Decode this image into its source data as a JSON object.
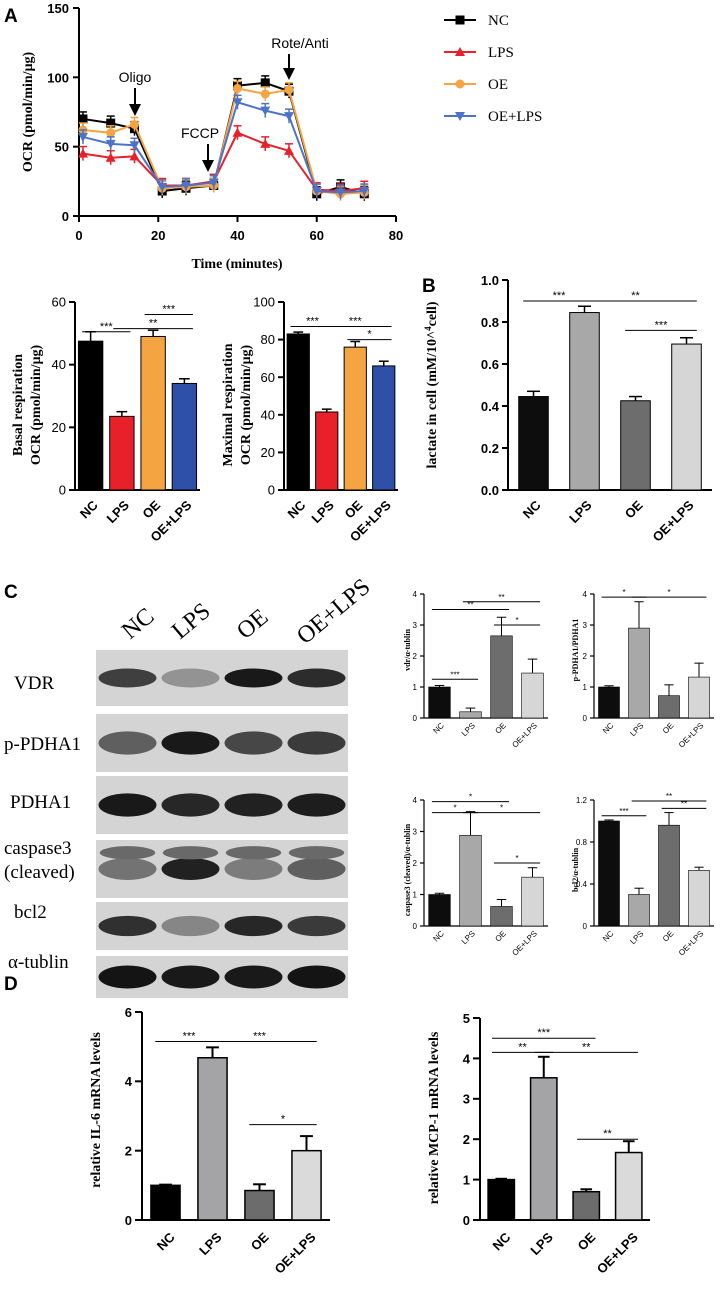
{
  "panels": {
    "A": "A",
    "B": "B",
    "C": "C",
    "D": "D"
  },
  "colors": {
    "NC": "#000000",
    "LPS": "#e8202a",
    "OE": "#f5a442",
    "OE+LPS": "#4d73c9"
  },
  "ocr": {
    "ylabel": "OCR (pmol/min/μg)",
    "xlabel": "Time (minutes)",
    "xticks": [
      "0",
      "20",
      "40",
      "60",
      "80"
    ],
    "yticks": [
      "0",
      "50",
      "100",
      "150"
    ],
    "annotations": {
      "oligo": "Oligo",
      "fccp": "FCCP",
      "rote": "Rote/Anti"
    },
    "legend": [
      "NC",
      "LPS",
      "OE",
      "OE+LPS"
    ]
  },
  "basal": {
    "ylabel1": "Basal respiration",
    "ylabel2": "OCR (pmol/min/μg)",
    "yticks": [
      "0",
      "20",
      "40",
      "60"
    ],
    "categories": [
      "NC",
      "LPS",
      "OE",
      "OE+LPS"
    ]
  },
  "maximal": {
    "ylabel1": "Maximal respiration",
    "ylabel2": "OCR (pmol/min/μg)",
    "yticks": [
      "0",
      "20",
      "40",
      "60",
      "80",
      "100"
    ],
    "categories": [
      "NC",
      "LPS",
      "OE",
      "OE+LPS"
    ]
  },
  "lactate": {
    "ylabel": "lactate in cell (mM/10^4cell)",
    "yticks": [
      "0.0",
      "0.2",
      "0.4",
      "0.6",
      "0.8",
      "1.0"
    ],
    "categories": [
      "NC",
      "LPS",
      "OE",
      "OE+LPS"
    ]
  },
  "blot": {
    "lanes": [
      "NC",
      "LPS",
      "OE",
      "OE+LPS"
    ],
    "rows": [
      "VDR",
      "p-PDHA1",
      "PDHA1",
      "caspase3",
      "(cleaved)",
      "bcl2",
      "α-tublin"
    ]
  },
  "smallcharts": {
    "vdr": {
      "ylabel": "vdr/α-tublin",
      "yticks": [
        "0",
        "1",
        "2",
        "3",
        "4"
      ]
    },
    "ppdh": {
      "ylabel": "p-PDHA1/PDHA1",
      "yticks": [
        "0",
        "1",
        "2",
        "3",
        "4"
      ]
    },
    "casp": {
      "ylabel": "caspase3 (cleaved)/α-tublin",
      "yticks": [
        "0",
        "1",
        "2",
        "3",
        "4"
      ]
    },
    "bcl2": {
      "ylabel": "bcl2/α-tublin",
      "yticks": [
        "0",
        "0.4",
        "0.8",
        "1.2"
      ]
    },
    "categories": [
      "NC",
      "LPS",
      "OE",
      "OE+LPS"
    ]
  },
  "il6": {
    "ylabel": "relative IL-6 mRNA levels",
    "yticks": [
      "0",
      "2",
      "4",
      "6"
    ],
    "categories": [
      "NC",
      "LPS",
      "OE",
      "OE+LPS"
    ]
  },
  "mcp1": {
    "ylabel": "relative MCP-1 mRNA levels",
    "yticks": [
      "0",
      "1",
      "2",
      "3",
      "4",
      "5"
    ],
    "categories": [
      "NC",
      "LPS",
      "OE",
      "OE+LPS"
    ]
  },
  "stars": {
    "s1": "*",
    "s2": "**",
    "s3": "***"
  },
  "chart_data": [
    {
      "type": "line",
      "id": "ocr-time-course",
      "title": "",
      "xlabel": "Time (minutes)",
      "ylabel": "OCR (pmol/min/μg)",
      "xlim": [
        0,
        80
      ],
      "ylim": [
        0,
        150
      ],
      "x": [
        1,
        8,
        14,
        21,
        27,
        34,
        40,
        47,
        53,
        60,
        66,
        72
      ],
      "series": [
        {
          "name": "NC",
          "values": [
            70,
            67,
            63,
            18,
            20,
            22,
            94,
            96,
            90,
            16,
            21,
            16
          ]
        },
        {
          "name": "LPS",
          "values": [
            45,
            42,
            43,
            22,
            22,
            25,
            60,
            52,
            47,
            19,
            18,
            20
          ]
        },
        {
          "name": "OE",
          "values": [
            62,
            60,
            66,
            20,
            21,
            22,
            92,
            88,
            91,
            18,
            16,
            17
          ]
        },
        {
          "name": "OE+LPS",
          "values": [
            57,
            52,
            51,
            21,
            22,
            24,
            82,
            76,
            72,
            18,
            17,
            18
          ]
        }
      ],
      "legend": "right"
    },
    {
      "type": "bar",
      "id": "basal",
      "categories": [
        "NC",
        "LPS",
        "OE",
        "OE+LPS"
      ],
      "values": [
        47.5,
        23.5,
        49,
        34
      ],
      "errors": [
        3,
        1.5,
        2,
        1.5
      ],
      "ylim": [
        0,
        60
      ]
    },
    {
      "type": "bar",
      "id": "maximal",
      "categories": [
        "NC",
        "LPS",
        "OE",
        "OE+LPS"
      ],
      "values": [
        83,
        41.5,
        76,
        66
      ],
      "errors": [
        1,
        1.5,
        3,
        2.5
      ],
      "ylim": [
        0,
        100
      ]
    },
    {
      "type": "bar",
      "id": "lactate",
      "categories": [
        "NC",
        "LPS",
        "OE",
        "OE+LPS"
      ],
      "values": [
        0.445,
        0.845,
        0.425,
        0.695
      ],
      "errors": [
        0.025,
        0.03,
        0.02,
        0.03
      ],
      "ylim": [
        0,
        1.0
      ]
    },
    {
      "type": "bar",
      "id": "vdr",
      "categories": [
        "NC",
        "LPS",
        "OE",
        "OE+LPS"
      ],
      "values": [
        1,
        0.2,
        2.65,
        1.45
      ],
      "errors": [
        0.05,
        0.12,
        0.6,
        0.45
      ],
      "ylim": [
        0,
        4
      ]
    },
    {
      "type": "bar",
      "id": "ppdh",
      "categories": [
        "NC",
        "LPS",
        "OE",
        "OE+LPS"
      ],
      "values": [
        1,
        2.9,
        0.72,
        1.32
      ],
      "errors": [
        0.04,
        0.85,
        0.35,
        0.45
      ],
      "ylim": [
        0,
        4
      ]
    },
    {
      "type": "bar",
      "id": "casp",
      "categories": [
        "NC",
        "LPS",
        "OE",
        "OE+LPS"
      ],
      "values": [
        1,
        2.88,
        0.62,
        1.55
      ],
      "errors": [
        0.04,
        0.75,
        0.22,
        0.3
      ],
      "ylim": [
        0,
        4
      ]
    },
    {
      "type": "bar",
      "id": "bcl2",
      "categories": [
        "NC",
        "LPS",
        "OE",
        "OE+LPS"
      ],
      "values": [
        1,
        0.3,
        0.96,
        0.53
      ],
      "errors": [
        0.01,
        0.06,
        0.12,
        0.03
      ],
      "ylim": [
        0,
        1.2
      ]
    },
    {
      "type": "bar",
      "id": "il6",
      "categories": [
        "NC",
        "LPS",
        "OE",
        "OE+LPS"
      ],
      "values": [
        1,
        4.68,
        0.85,
        2
      ],
      "errors": [
        0.02,
        0.3,
        0.18,
        0.42
      ],
      "ylim": [
        0,
        6
      ]
    },
    {
      "type": "bar",
      "id": "mcp1",
      "categories": [
        "NC",
        "LPS",
        "OE",
        "OE+LPS"
      ],
      "values": [
        1,
        3.52,
        0.7,
        1.67
      ],
      "errors": [
        0.02,
        0.52,
        0.06,
        0.28
      ],
      "ylim": [
        0,
        5
      ]
    }
  ]
}
